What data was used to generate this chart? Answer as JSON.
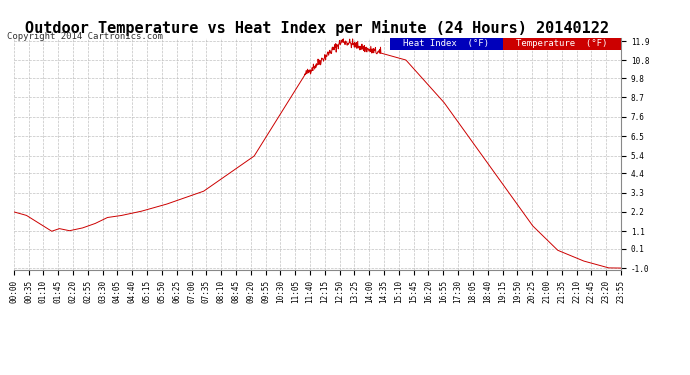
{
  "title": "Outdoor Temperature vs Heat Index per Minute (24 Hours) 20140122",
  "copyright": "Copyright 2014 Cartronics.com",
  "legend_heat_index": "Heat Index  (°F)",
  "legend_temperature": "Temperature  (°F)",
  "background_color": "#ffffff",
  "grid_color": "#bbbbbb",
  "line_color": "#cc0000",
  "ylim": [
    -1.0,
    11.9
  ],
  "yticks": [
    -1.0,
    0.1,
    1.1,
    2.2,
    3.3,
    4.4,
    5.4,
    6.5,
    7.6,
    8.7,
    9.8,
    10.8,
    11.9
  ],
  "xtick_labels": [
    "00:00",
    "00:35",
    "01:10",
    "01:45",
    "02:20",
    "02:55",
    "03:30",
    "04:05",
    "04:40",
    "05:15",
    "05:50",
    "06:25",
    "07:00",
    "07:35",
    "08:10",
    "08:45",
    "09:20",
    "09:55",
    "10:30",
    "11:05",
    "11:40",
    "12:15",
    "12:50",
    "13:25",
    "14:00",
    "14:35",
    "15:10",
    "15:45",
    "16:20",
    "16:55",
    "17:30",
    "18:05",
    "18:40",
    "19:15",
    "19:50",
    "20:25",
    "21:00",
    "21:35",
    "22:10",
    "22:45",
    "23:20",
    "23:55"
  ],
  "title_fontsize": 11,
  "copyright_fontsize": 6.5,
  "tick_fontsize": 5.5,
  "legend_fontsize": 6.5
}
